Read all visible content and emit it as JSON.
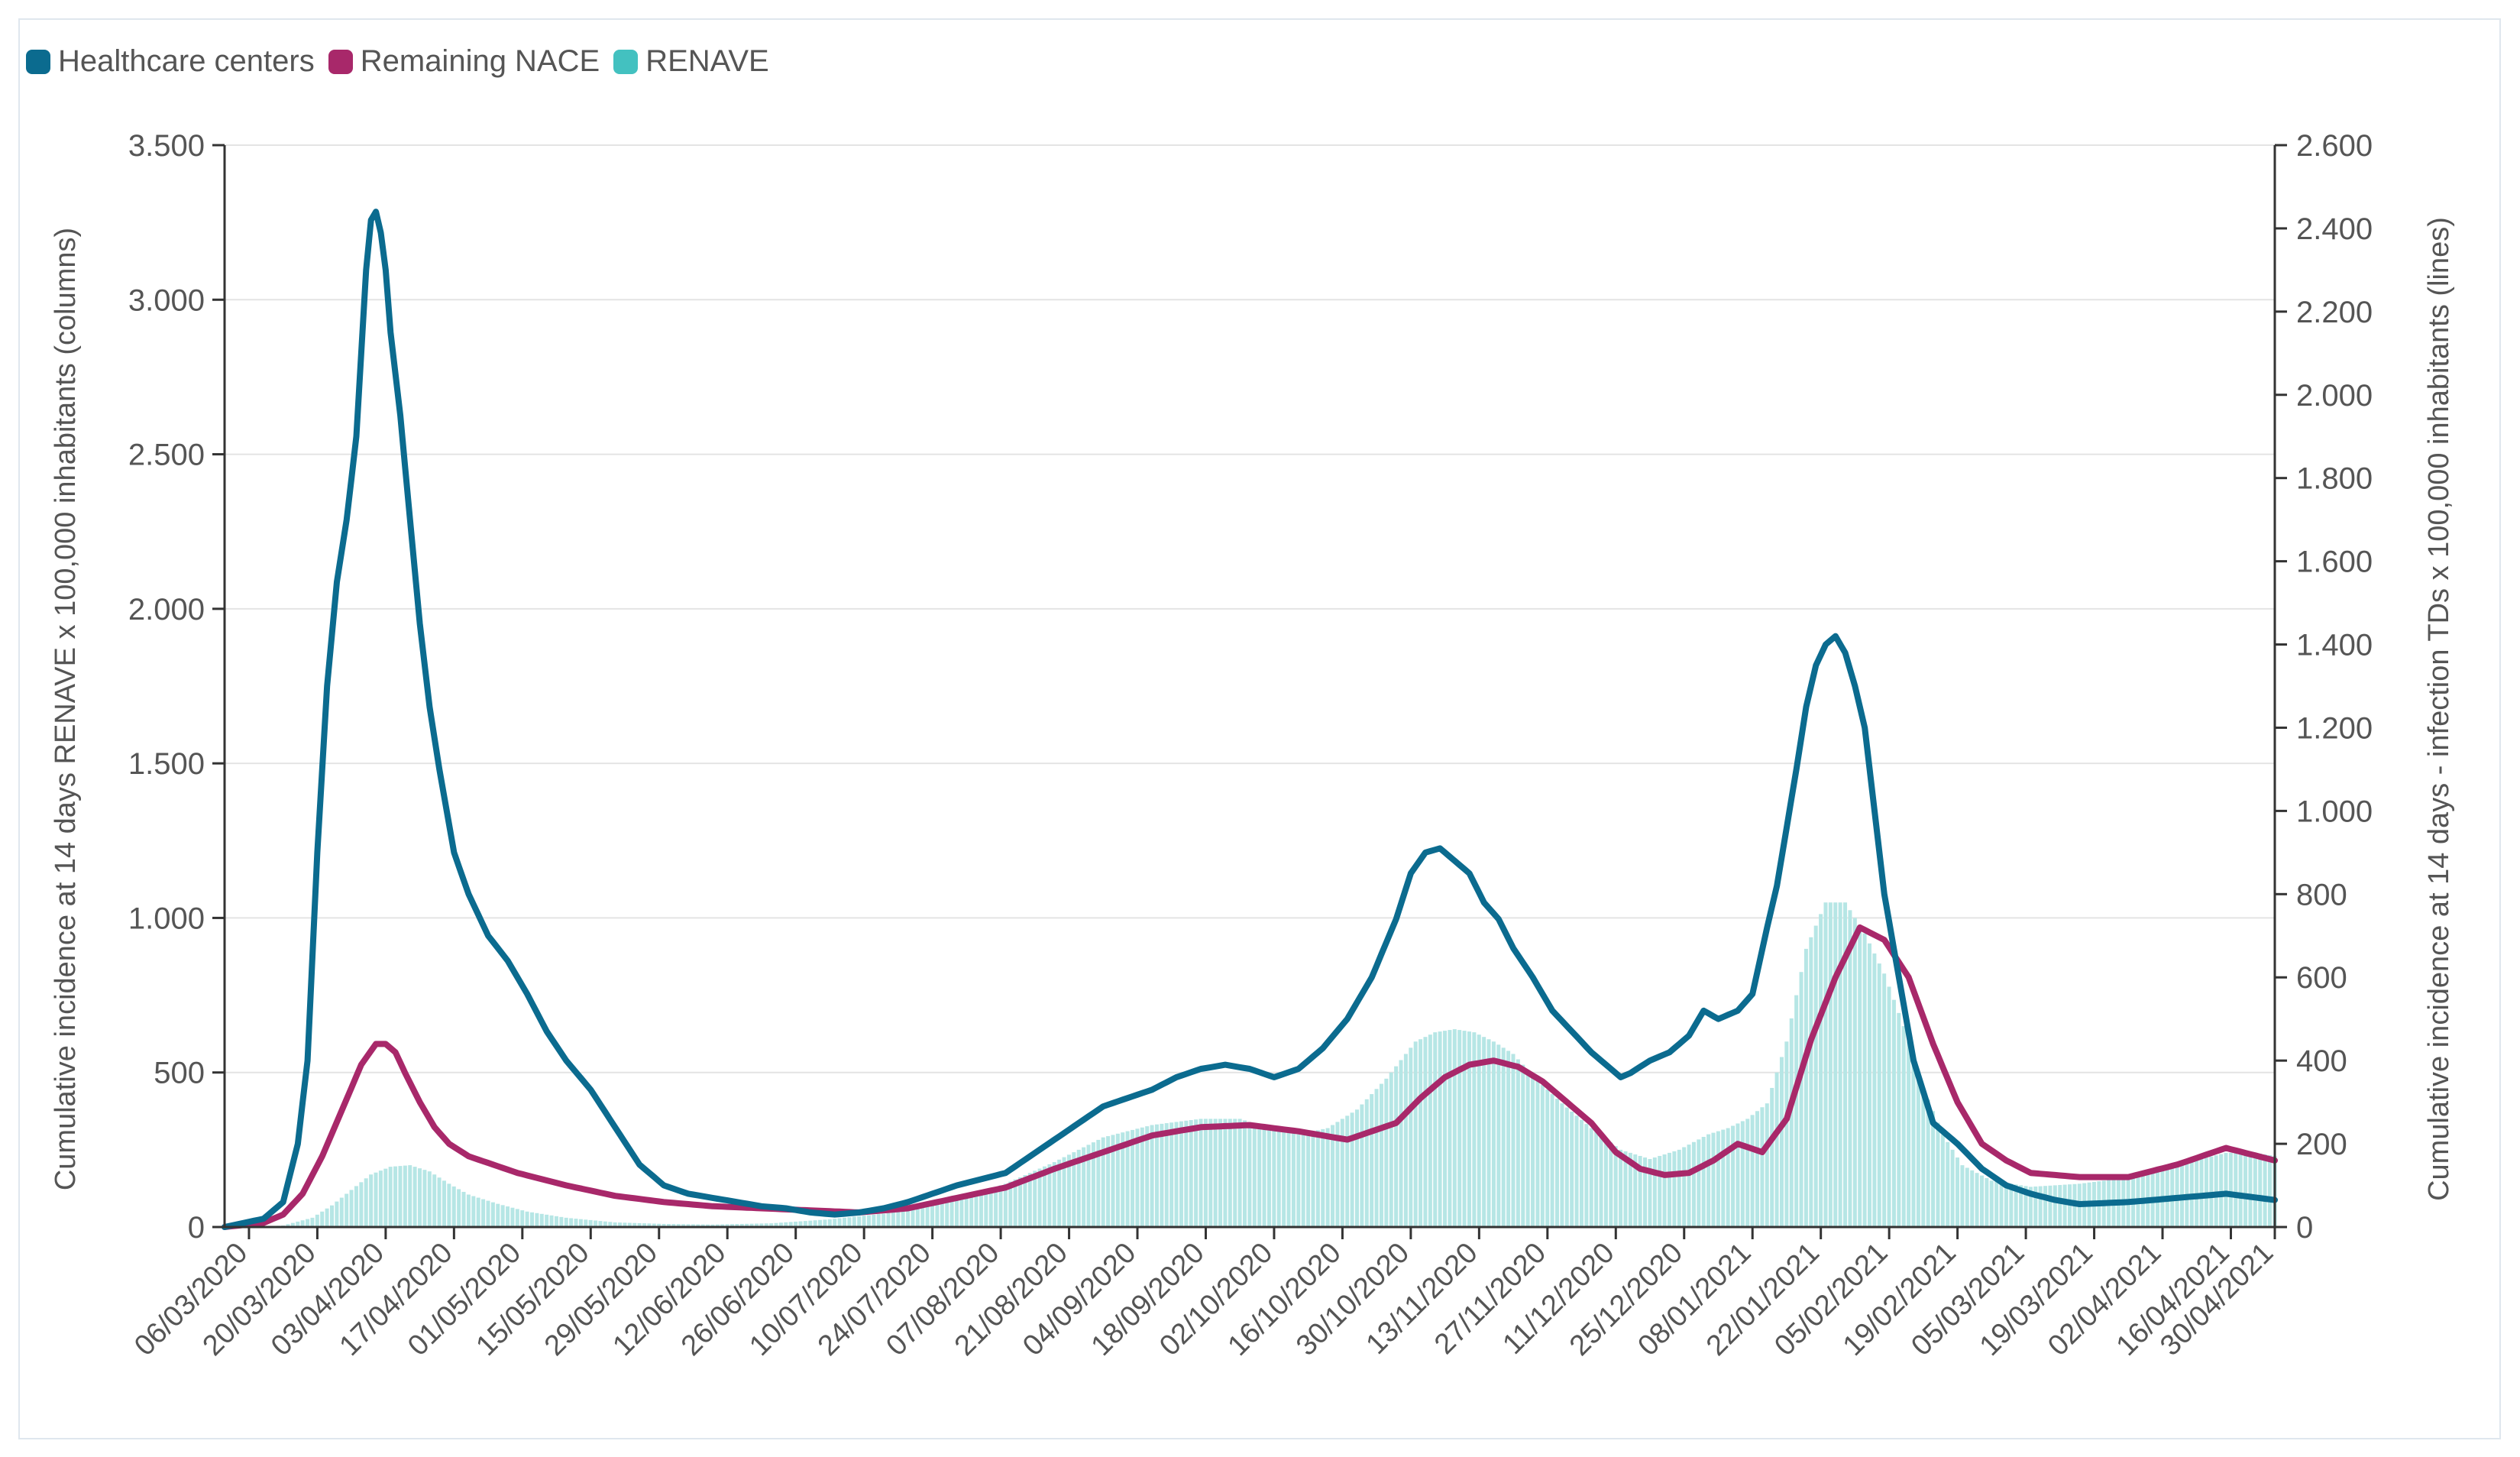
{
  "colors": {
    "healthcare": "#0b6b8f",
    "nace": "#a8286a",
    "renave": "#43c1c0",
    "renave_fill": "#b6e6e5",
    "grid": "#e4e4e4",
    "axis": "#333333",
    "text": "#555555"
  },
  "chart_data": {
    "type": "bar+line",
    "legend": [
      "Healthcare centers",
      "Remaining NACE",
      "RENAVE"
    ],
    "legend_position": "top-left",
    "x_range_days": [
      0,
      420
    ],
    "x_start_date": "01/03/2020",
    "x_ticks": [
      {
        "day": 5,
        "label": "06/03/2020"
      },
      {
        "day": 19,
        "label": "20/03/2020"
      },
      {
        "day": 33,
        "label": "03/04/2020"
      },
      {
        "day": 47,
        "label": "17/04/2020"
      },
      {
        "day": 61,
        "label": "01/05/2020"
      },
      {
        "day": 75,
        "label": "15/05/2020"
      },
      {
        "day": 89,
        "label": "29/05/2020"
      },
      {
        "day": 103,
        "label": "12/06/2020"
      },
      {
        "day": 117,
        "label": "26/06/2020"
      },
      {
        "day": 131,
        "label": "10/07/2020"
      },
      {
        "day": 145,
        "label": "24/07/2020"
      },
      {
        "day": 159,
        "label": "07/08/2020"
      },
      {
        "day": 173,
        "label": "21/08/2020"
      },
      {
        "day": 187,
        "label": "04/09/2020"
      },
      {
        "day": 201,
        "label": "18/09/2020"
      },
      {
        "day": 215,
        "label": "02/10/2020"
      },
      {
        "day": 229,
        "label": "16/10/2020"
      },
      {
        "day": 243,
        "label": "30/10/2020"
      },
      {
        "day": 257,
        "label": "13/11/2020"
      },
      {
        "day": 271,
        "label": "27/11/2020"
      },
      {
        "day": 285,
        "label": "11/12/2020"
      },
      {
        "day": 299,
        "label": "25/12/2020"
      },
      {
        "day": 313,
        "label": "08/01/2021"
      },
      {
        "day": 327,
        "label": "22/01/2021"
      },
      {
        "day": 341,
        "label": "05/02/2021"
      },
      {
        "day": 355,
        "label": "19/02/2021"
      },
      {
        "day": 369,
        "label": "05/03/2021"
      },
      {
        "day": 383,
        "label": "19/03/2021"
      },
      {
        "day": 397,
        "label": "02/04/2021"
      },
      {
        "day": 411,
        "label": "16/04/2021"
      },
      {
        "day": 425,
        "label": "30/04/2021"
      }
    ],
    "y_left": {
      "label": "Cumulative incidence at 14 days RENAVE x 100,000 inhabitants (columns)",
      "range": [
        0,
        3500
      ],
      "ticks": [
        0,
        500,
        1000,
        1500,
        2000,
        2500,
        3000,
        3500
      ],
      "tick_labels": [
        "0",
        "500",
        "1.000",
        "1.500",
        "2.000",
        "2.500",
        "3.000",
        "3.500"
      ]
    },
    "y_right": {
      "label": "Cumulative incidence at 14 days - infection TDs x 100,000 inhabitants (lines)",
      "range": [
        0,
        2600
      ],
      "ticks": [
        0,
        200,
        400,
        600,
        800,
        1000,
        1200,
        1400,
        1600,
        1800,
        2000,
        2200,
        2400,
        2600
      ],
      "tick_labels": [
        "0",
        "200",
        "400",
        "600",
        "800",
        "1.000",
        "1.200",
        "1.400",
        "1.600",
        "1.800",
        "2.000",
        "2.200",
        "2.400",
        "2.600"
      ]
    },
    "grid": "horizontal",
    "series": [
      {
        "name": "RENAVE",
        "type": "columns",
        "axis": "left",
        "x": [
          0,
          6,
          12,
          18,
          22,
          26,
          30,
          34,
          38,
          42,
          46,
          50,
          56,
          62,
          70,
          80,
          90,
          100,
          112,
          124,
          136,
          148,
          160,
          170,
          180,
          190,
          200,
          208,
          214,
          220,
          226,
          232,
          238,
          244,
          248,
          252,
          256,
          260,
          264,
          268,
          274,
          280,
          286,
          292,
          298,
          304,
          308,
          312,
          316,
          320,
          324,
          328,
          332,
          336,
          340,
          344,
          348,
          352,
          356,
          362,
          370,
          380,
          390,
          400,
          410,
          416,
          420
        ],
        "values": [
          0,
          0,
          5,
          30,
          70,
          120,
          170,
          195,
          200,
          180,
          140,
          105,
          75,
          50,
          30,
          15,
          10,
          8,
          12,
          25,
          45,
          80,
          140,
          210,
          290,
          330,
          350,
          350,
          320,
          300,
          320,
          380,
          480,
          600,
          630,
          640,
          630,
          600,
          560,
          490,
          400,
          320,
          250,
          220,
          250,
          300,
          320,
          350,
          400,
          600,
          900,
          1050,
          1050,
          950,
          820,
          650,
          450,
          300,
          200,
          150,
          130,
          140,
          160,
          200,
          240,
          240,
          230
        ]
      },
      {
        "name": "Healthcare centers",
        "type": "line",
        "axis": "right",
        "x": [
          0,
          4,
          8,
          12,
          15,
          17,
          19,
          21,
          23,
          25,
          27,
          28,
          29,
          30,
          31,
          32,
          33,
          34,
          36,
          38,
          40,
          42,
          44,
          47,
          50,
          54,
          58,
          62,
          66,
          70,
          75,
          80,
          85,
          90,
          95,
          100,
          105,
          110,
          115,
          120,
          125,
          130,
          135,
          140,
          145,
          150,
          155,
          160,
          165,
          170,
          175,
          180,
          185,
          190,
          195,
          200,
          205,
          210,
          215,
          220,
          225,
          230,
          235,
          240,
          243,
          246,
          249,
          252,
          255,
          258,
          261,
          264,
          268,
          272,
          276,
          280,
          284,
          286,
          288,
          292,
          296,
          300,
          303,
          306,
          310,
          313,
          316,
          318,
          320,
          322,
          324,
          326,
          328,
          330,
          332,
          334,
          336,
          338,
          340,
          343,
          346,
          350,
          355,
          360,
          365,
          370,
          375,
          380,
          390,
          400,
          410,
          420
        ],
        "values": [
          0,
          10,
          20,
          60,
          200,
          400,
          900,
          1300,
          1550,
          1700,
          1900,
          2100,
          2300,
          2420,
          2440,
          2390,
          2300,
          2150,
          1950,
          1700,
          1450,
          1250,
          1100,
          900,
          800,
          700,
          640,
          560,
          470,
          400,
          330,
          240,
          150,
          100,
          80,
          70,
          60,
          50,
          45,
          35,
          30,
          35,
          45,
          60,
          80,
          100,
          115,
          130,
          170,
          210,
          250,
          290,
          310,
          330,
          360,
          380,
          390,
          380,
          360,
          380,
          430,
          500,
          600,
          740,
          850,
          900,
          910,
          880,
          850,
          780,
          740,
          670,
          600,
          520,
          470,
          420,
          380,
          360,
          370,
          400,
          420,
          460,
          520,
          500,
          520,
          560,
          720,
          820,
          960,
          1100,
          1250,
          1350,
          1400,
          1420,
          1380,
          1300,
          1200,
          1000,
          800,
          600,
          400,
          250,
          200,
          140,
          100,
          80,
          65,
          55,
          60,
          70,
          80,
          65
        ],
        "estimated": true
      },
      {
        "name": "Remaining NACE",
        "type": "line",
        "axis": "right",
        "x": [
          0,
          8,
          12,
          16,
          20,
          24,
          28,
          31,
          33,
          35,
          37,
          40,
          43,
          46,
          50,
          55,
          60,
          70,
          80,
          90,
          100,
          110,
          120,
          130,
          140,
          150,
          160,
          170,
          180,
          190,
          200,
          210,
          220,
          230,
          240,
          245,
          250,
          255,
          260,
          265,
          270,
          275,
          280,
          285,
          290,
          295,
          300,
          305,
          310,
          315,
          320,
          325,
          330,
          335,
          340,
          345,
          350,
          355,
          360,
          365,
          370,
          380,
          390,
          400,
          410,
          420
        ],
        "values": [
          0,
          10,
          30,
          80,
          170,
          280,
          390,
          440,
          440,
          420,
          370,
          300,
          240,
          200,
          170,
          150,
          130,
          100,
          75,
          60,
          50,
          45,
          40,
          35,
          45,
          70,
          95,
          140,
          180,
          220,
          240,
          245,
          230,
          210,
          250,
          310,
          360,
          390,
          400,
          385,
          350,
          300,
          250,
          180,
          140,
          125,
          130,
          160,
          200,
          180,
          260,
          450,
          600,
          720,
          690,
          600,
          440,
          300,
          200,
          160,
          130,
          120,
          120,
          150,
          190,
          160
        ],
        "estimated": true
      }
    ]
  }
}
